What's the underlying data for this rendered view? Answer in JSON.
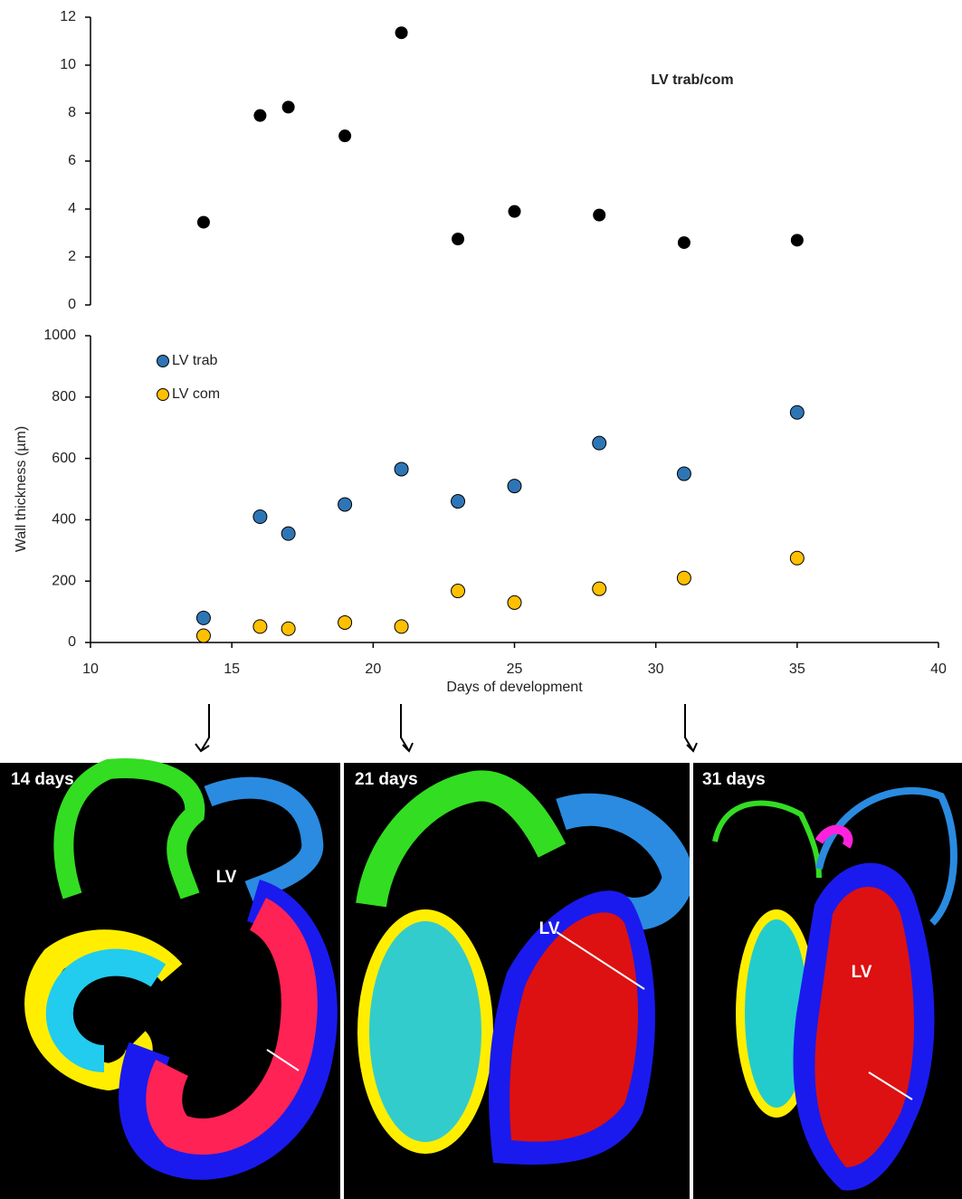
{
  "chart_data": [
    {
      "type": "scatter",
      "annotation": "LV trab/com",
      "x": [
        14,
        16,
        17,
        19,
        21,
        23,
        25,
        28,
        31,
        35
      ],
      "values": [
        3.45,
        7.9,
        8.25,
        7.05,
        11.35,
        2.75,
        3.9,
        3.75,
        2.6,
        2.7
      ],
      "color": "#000000",
      "xlim": [
        10,
        40
      ],
      "ylim": [
        0,
        12
      ],
      "yticks": [
        0,
        2,
        4,
        6,
        8,
        10,
        12
      ]
    },
    {
      "type": "scatter",
      "y_label": "Wall thickness (µm)",
      "x_label": "Days of development",
      "x": [
        14,
        16,
        17,
        19,
        21,
        23,
        25,
        28,
        31,
        35
      ],
      "series": [
        {
          "name": "LV trab",
          "color": "#2e75b6",
          "values": [
            80,
            410,
            355,
            450,
            565,
            460,
            510,
            650,
            550,
            750
          ]
        },
        {
          "name": "LV com",
          "color": "#ffc000",
          "values": [
            22,
            52,
            45,
            65,
            52,
            168,
            130,
            175,
            210,
            275
          ]
        }
      ],
      "xlim": [
        10,
        40
      ],
      "xticks": [
        10,
        15,
        20,
        25,
        30,
        35,
        40
      ],
      "ylim": [
        0,
        1000
      ],
      "yticks": [
        0,
        200,
        400,
        600,
        800,
        1000
      ],
      "legend": "upper left"
    }
  ],
  "panels": [
    {
      "label": "14 days",
      "region": "LV"
    },
    {
      "label": "21 days",
      "region": "LV"
    },
    {
      "label": "31 days",
      "region": "LV"
    }
  ]
}
